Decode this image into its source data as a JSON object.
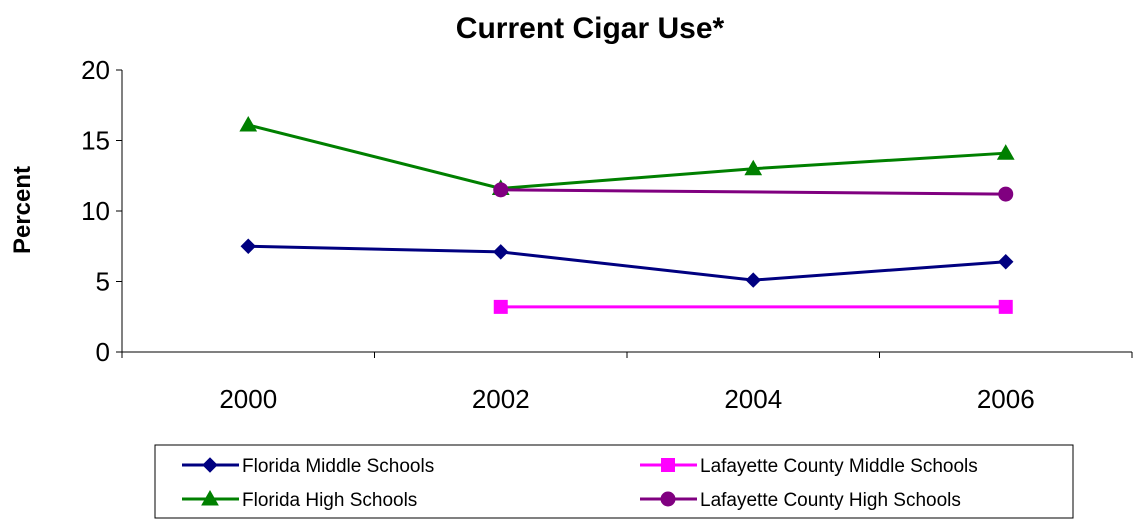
{
  "chart_data": {
    "type": "line",
    "title": "Current Cigar Use*",
    "ylabel": "Percent",
    "xlabel": "",
    "categories": [
      "2000",
      "2002",
      "2004",
      "2006"
    ],
    "ylim": [
      0,
      20
    ],
    "yticks": [
      "0",
      "5",
      "10",
      "15",
      "20"
    ],
    "grid": false,
    "legend_position": "bottom",
    "series": [
      {
        "name": "Florida Middle Schools",
        "color": "#000080",
        "marker": "diamond",
        "values": [
          7.5,
          7.1,
          5.1,
          6.4
        ]
      },
      {
        "name": "Lafayette County Middle Schools",
        "color": "#FF00FF",
        "marker": "square",
        "values": [
          null,
          3.2,
          null,
          3.2
        ]
      },
      {
        "name": "Florida High Schools",
        "color": "#008000",
        "marker": "triangle",
        "values": [
          16.1,
          11.6,
          13.0,
          14.1
        ]
      },
      {
        "name": "Lafayette County High Schools",
        "color": "#800080",
        "marker": "circle",
        "values": [
          null,
          11.5,
          null,
          11.2
        ]
      }
    ]
  }
}
